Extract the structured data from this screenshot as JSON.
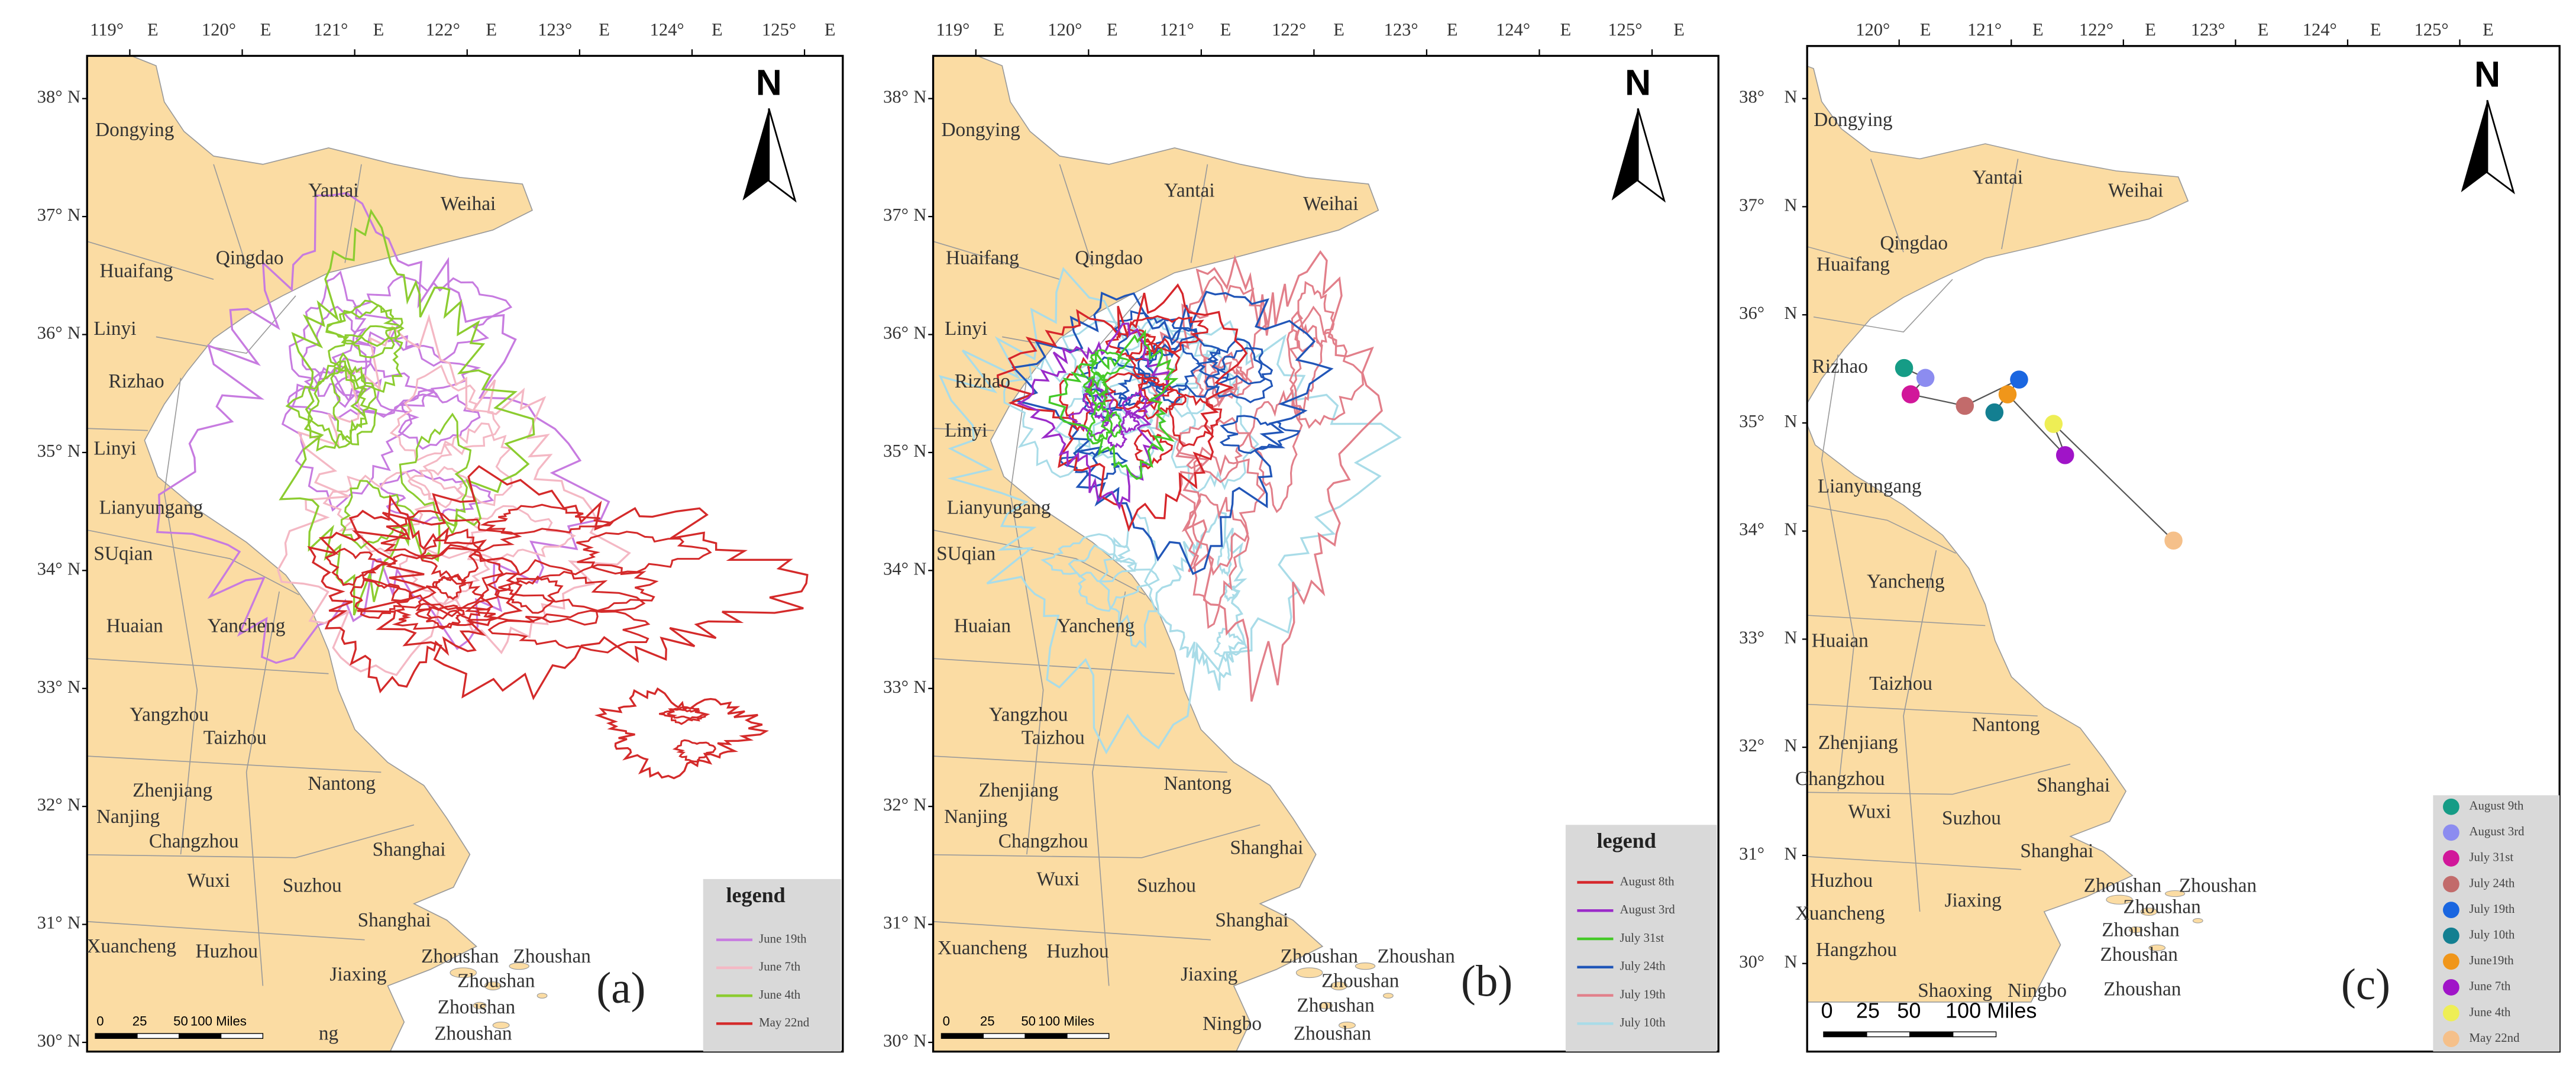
{
  "panels": [
    {
      "label": "(a)",
      "north": "N",
      "lon_ticks": [
        {
          "deg": "119°",
          "hemisphere": "E"
        },
        {
          "deg": "120°",
          "hemisphere": "E"
        },
        {
          "deg": "121°",
          "hemisphere": "E"
        },
        {
          "deg": "122°",
          "hemisphere": "E"
        },
        {
          "deg": "123°",
          "hemisphere": "E"
        },
        {
          "deg": "124°",
          "hemisphere": "E"
        },
        {
          "deg": "125°",
          "hemisphere": "E"
        }
      ],
      "lat_ticks": [
        {
          "deg": "38°",
          "hemisphere": "N"
        },
        {
          "deg": "37°",
          "hemisphere": "N"
        },
        {
          "deg": "36°",
          "hemisphere": "N"
        },
        {
          "deg": "35°",
          "hemisphere": "N"
        },
        {
          "deg": "34°",
          "hemisphere": "N"
        },
        {
          "deg": "33°",
          "hemisphere": "N"
        },
        {
          "deg": "32°",
          "hemisphere": "N"
        },
        {
          "deg": "31°",
          "hemisphere": "N"
        },
        {
          "deg": "30°",
          "hemisphere": "N"
        }
      ],
      "places": [
        "Dongying",
        "Yantai",
        "Weihai",
        "Huaifang",
        "Qingdao",
        "Linyi",
        "Rizhao",
        "Linyi",
        "Lianyungang",
        "SUqian",
        "Huaian",
        "Yancheng",
        "Yangzhou",
        "Taizhou",
        "Nantong",
        "Zhenjiang",
        "Nanjing",
        "Changzhou",
        "Shanghai",
        "Wuxi",
        "Suzhou",
        "Shanghai",
        "Xuancheng",
        "Huzhou",
        "Jiaxing",
        "Zhoushan",
        "Zhoushan",
        "Zhoushan",
        "Zhoushan",
        "Zhoushan",
        "ng"
      ],
      "legend": {
        "title": "legend",
        "items": [
          {
            "name": "June 19th",
            "color": "#c77be0"
          },
          {
            "name": "June 7th",
            "color": "#f4b8c4"
          },
          {
            "name": "June 4th",
            "color": "#8ccc30"
          },
          {
            "name": "May 22nd",
            "color": "#d42a2a"
          }
        ]
      },
      "scale_bar": [
        "0",
        "25",
        "50",
        "100 Miles"
      ]
    },
    {
      "label": "(b)",
      "north": "N",
      "lon_ticks": [
        {
          "deg": "119°",
          "hemisphere": "E"
        },
        {
          "deg": "120°",
          "hemisphere": "E"
        },
        {
          "deg": "121°",
          "hemisphere": "E"
        },
        {
          "deg": "122°",
          "hemisphere": "E"
        },
        {
          "deg": "123°",
          "hemisphere": "E"
        },
        {
          "deg": "124°",
          "hemisphere": "E"
        },
        {
          "deg": "125°",
          "hemisphere": "E"
        }
      ],
      "lat_ticks": [
        {
          "deg": "38°",
          "hemisphere": "N"
        },
        {
          "deg": "37°",
          "hemisphere": "N"
        },
        {
          "deg": "36°",
          "hemisphere": "N"
        },
        {
          "deg": "35°",
          "hemisphere": "N"
        },
        {
          "deg": "34°",
          "hemisphere": "N"
        },
        {
          "deg": "33°",
          "hemisphere": "N"
        },
        {
          "deg": "32°",
          "hemisphere": "N"
        },
        {
          "deg": "31°",
          "hemisphere": "N"
        },
        {
          "deg": "30°",
          "hemisphere": "N"
        }
      ],
      "places": [
        "Dongying",
        "Yantai",
        "Weihai",
        "Huaifang",
        "Qingdao",
        "Linyi",
        "Rizhao",
        "Linyi",
        "Lianyungang",
        "SUqian",
        "Huaian",
        "Yancheng",
        "Yangzhou",
        "Taizhou",
        "Nantong",
        "Zhenjiang",
        "Nanjing",
        "Changzhou",
        "Shanghai",
        "Wuxi",
        "Suzhou",
        "Shanghai",
        "Xuancheng",
        "Huzhou",
        "Jiaxing",
        "Zhoushan",
        "Zhoushan",
        "Zhoushan",
        "Zhoushan",
        "Zhoushan",
        "Ningbo"
      ],
      "legend": {
        "title": "legend",
        "items": [
          {
            "name": "August 8th",
            "color": "#d6262b"
          },
          {
            "name": "August 3rd",
            "color": "#9b2bc9"
          },
          {
            "name": "July 31st",
            "color": "#44c928"
          },
          {
            "name": "July 24th",
            "color": "#2156b8"
          },
          {
            "name": "July 19th",
            "color": "#e27f8a"
          },
          {
            "name": "July 10th",
            "color": "#a9dce8"
          }
        ]
      },
      "scale_bar": [
        "0",
        "25",
        "50",
        "100 Miles"
      ]
    },
    {
      "label": "(c)",
      "north": "N",
      "lon_ticks": [
        {
          "deg": "120°",
          "hemisphere": "E"
        },
        {
          "deg": "121°",
          "hemisphere": "E"
        },
        {
          "deg": "122°",
          "hemisphere": "E"
        },
        {
          "deg": "123°",
          "hemisphere": "E"
        },
        {
          "deg": "124°",
          "hemisphere": "E"
        },
        {
          "deg": "125°",
          "hemisphere": "E"
        }
      ],
      "lat_ticks": [
        {
          "deg": "38°",
          "hemisphere": "N"
        },
        {
          "deg": "37°",
          "hemisphere": "N"
        },
        {
          "deg": "36°",
          "hemisphere": "N"
        },
        {
          "deg": "35°",
          "hemisphere": "N"
        },
        {
          "deg": "34°",
          "hemisphere": "N"
        },
        {
          "deg": "33°",
          "hemisphere": "N"
        },
        {
          "deg": "32°",
          "hemisphere": "N"
        },
        {
          "deg": "31°",
          "hemisphere": "N"
        },
        {
          "deg": "30°",
          "hemisphere": "N"
        }
      ],
      "places": [
        "Dongying",
        "Yantai",
        "Weihai",
        "Qingdao",
        "Huaifang",
        "Rizhao",
        "Lianyungang",
        "Yancheng",
        "Huaian",
        "Taizhou",
        "Nantong",
        "Zhenjiang",
        "Changzhou",
        "Shanghai",
        "Wuxi",
        "Suzhou",
        "Shanghai",
        "Huzhou",
        "Xuancheng",
        "Jiaxing",
        "Hangzhou",
        "Zhoushan",
        "Zhoushan",
        "Zhoushan",
        "Zhoushan",
        "Zhoushan",
        "Zhoushan",
        "Shaoxing",
        "Ningbo"
      ],
      "legend": {
        "items": [
          {
            "name": "August 9th",
            "color": "#169c86"
          },
          {
            "name": "August 3rd",
            "color": "#8c8cf0"
          },
          {
            "name": "July 31st",
            "color": "#d1179a"
          },
          {
            "name": "July 24th",
            "color": "#c26b6b"
          },
          {
            "name": "July 19th",
            "color": "#1a66e0"
          },
          {
            "name": "July 10th",
            "color": "#137f91"
          },
          {
            "name": "June19th",
            "color": "#f0961a"
          },
          {
            "name": "June 7th",
            "color": "#a014c8"
          },
          {
            "name": "June 4th",
            "color": "#eeee55"
          },
          {
            "name": "May 22nd",
            "color": "#f5c08a"
          }
        ]
      },
      "scale_bar": [
        "0",
        "25",
        "50",
        "100 Miles"
      ]
    }
  ]
}
